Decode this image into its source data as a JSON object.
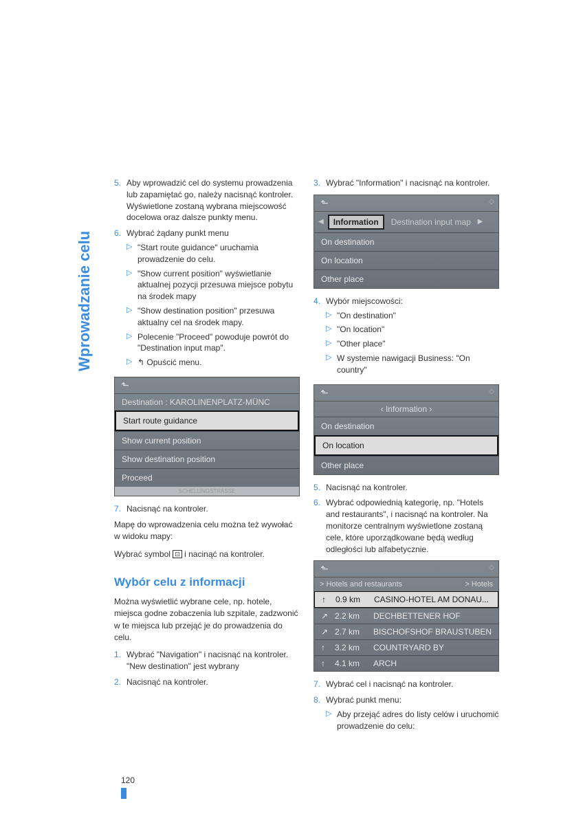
{
  "sidebar_title": "Wprowadzanie celu",
  "page_number": "120",
  "left": {
    "items": [
      {
        "num": "5.",
        "text": "Aby wprowadzić cel do systemu prowadzenia lub zapamiętać go, należy nacisnąć kontroler.\nWyświetlone zostaną wybrana miejscowość docelowa oraz dalsze punkty menu."
      },
      {
        "num": "6.",
        "text": "Wybrać żądany punkt menu",
        "subs": [
          "\"Start route guidance\" uruchamia prowadzenie do celu.",
          "\"Show current position\" wyświetlanie aktualnej pozycji przesuwa miejsce pobytu na środek mapy",
          "\"Show destination position\" przesuwa aktualny cel na środek mapy.",
          "Polecenie \"Proceed\" powoduje powrót do \"Destination input map\".",
          "↰ Opuścić menu."
        ]
      }
    ],
    "item7": {
      "num": "7.",
      "text": "Nacisnąć na kontroler."
    },
    "map_note_1": "Mapę do wprowadzenia celu można też wywołać w widoku mapy:",
    "map_note_2a": "Wybrać symbol ",
    "map_note_2b": " i nacinąć na kontroler.",
    "heading": "Wybór celu z informacji",
    "heading_text": "Można wyświetlić wybrane cele, np. hotele, miejsca godne zobaczenia lub szpitale, zadzwonić w te miejsca lub przejąć je do prowadzenia do celu.",
    "b_items": [
      {
        "num": "1.",
        "text": "Wybrać \"Navigation\" i nacisnąć na kontroler. \"New destination\" jest wybrany"
      },
      {
        "num": "2.",
        "text": "Nacisnąć na kontroler."
      }
    ]
  },
  "screen1": {
    "dest_label": "Destination :",
    "dest_value": "KAROLINENPLATZ-MÜNC",
    "rows": [
      "Start route guidance",
      "Show current position",
      "Show destination position",
      "Proceed"
    ],
    "selected": 0,
    "footer": "SCHELLINGSTRASSE"
  },
  "right": {
    "item3": {
      "num": "3.",
      "text": "Wybrać \"Information\" i nacisnąć na kontroler."
    },
    "item4": {
      "num": "4.",
      "text": "Wybór miejscowości:",
      "subs": [
        "\"On destination\"",
        "\"On location\"",
        "\"Other place\"",
        "W systemie nawigacji Business: \"On country\""
      ]
    },
    "item5": {
      "num": "5.",
      "text": "Nacisnąć na kontroler."
    },
    "item6": {
      "num": "6.",
      "text": "Wybrać odpowiednią kategorię, np. \"Hotels and restaurants\", i nacisnąć na kontroler. Na monitorze centralnym wyświetlone zostaną cele, które uporządkowane będą według odległości lub alfabetycznie."
    },
    "item7": {
      "num": "7.",
      "text": "Wybrać cel i nacisnąć na kontroler."
    },
    "item8": {
      "num": "8.",
      "text": "Wybrać punkt menu:",
      "subs": [
        "Aby przejąć adres do listy celów i uruchomić prowadzenie do celu:"
      ]
    }
  },
  "screen2": {
    "tab_selected": "Information",
    "tab_other": "Destination input map",
    "rows": [
      "On destination",
      "On location",
      "Other place"
    ]
  },
  "screen3": {
    "title": "‹ Information ›",
    "rows": [
      "On destination",
      "On location",
      "Other place"
    ],
    "selected": 1
  },
  "screen4": {
    "crumb1": "> Hotels and restaurants",
    "crumb2": "> Hotels",
    "rows": [
      {
        "arrow": "↑",
        "dist": "0.9 km",
        "name": "CASINO-HOTEL AM DONAU...",
        "sel": true
      },
      {
        "arrow": "↗",
        "dist": "2.2 km",
        "name": "DECHBETTENER HOF"
      },
      {
        "arrow": "↗",
        "dist": "2.7 km",
        "name": "BISCHOFSHOF BRAUSTUBEN"
      },
      {
        "arrow": "↑",
        "dist": "3.2 km",
        "name": "COUNTRYARD BY"
      },
      {
        "arrow": "↑",
        "dist": "4.1 km",
        "name": "ARCH"
      }
    ]
  }
}
